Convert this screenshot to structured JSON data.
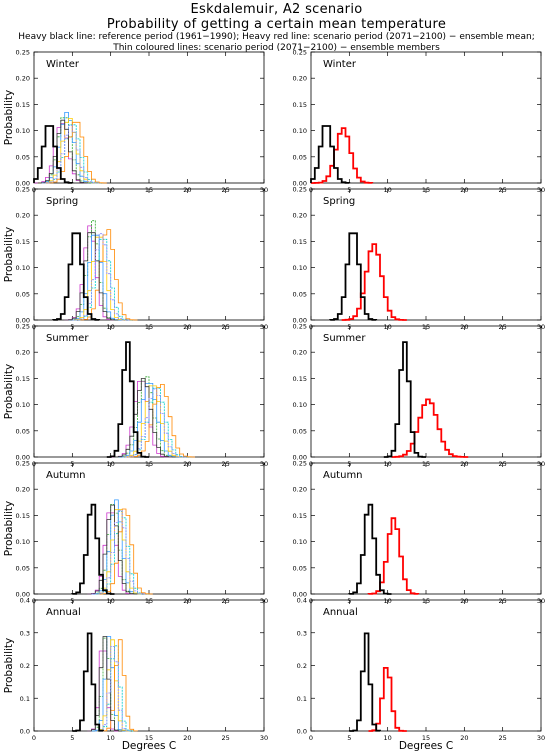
{
  "header": {
    "title": "Eskdalemuir, A2 scenario",
    "subtitle": "Probability of getting a certain mean temperature",
    "note1": "Heavy black line: reference period (1961−1990); Heavy red line: scenario period (2071−2100) − ensemble mean;",
    "note2": "Thin coloured lines: scenario period (2071−2100) − ensemble members"
  },
  "axes": {
    "xlabel": "Degrees C",
    "ylabel": "Probability",
    "xlim": [
      0,
      30
    ],
    "xticks": [
      "0",
      "5",
      "10",
      "15",
      "20",
      "25",
      "30"
    ]
  },
  "colors": {
    "reference": "#000000",
    "ensemble_mean": "#ff0000",
    "members": [
      "#cc33cc",
      "#33aa33",
      "#3399ff",
      "#ffcc00",
      "#00cccc",
      "#ff8800",
      "#333333",
      "#8888ff"
    ]
  },
  "chart_data": [
    {
      "type": "line",
      "season": "Winter",
      "ylim": [
        0,
        0.25
      ],
      "yticks": [
        "0.00",
        "0.05",
        "0.10",
        "0.15",
        "0.20",
        "0.25"
      ],
      "reference": {
        "mean": 2.0,
        "sd": 0.75,
        "peak": 0.115
      },
      "scenario_mean": {
        "mean": 4.2,
        "sd": 0.95,
        "peak": 0.105
      },
      "members": [
        {
          "mean": 3.6,
          "sd": 0.85,
          "peak": 0.115
        },
        {
          "mean": 4.0,
          "sd": 0.85,
          "peak": 0.13
        },
        {
          "mean": 4.3,
          "sd": 0.9,
          "peak": 0.135
        },
        {
          "mean": 4.6,
          "sd": 0.9,
          "peak": 0.125
        },
        {
          "mean": 5.0,
          "sd": 0.95,
          "peak": 0.115
        },
        {
          "mean": 5.5,
          "sd": 0.95,
          "peak": 0.12
        },
        {
          "mean": 3.8,
          "sd": 0.8,
          "peak": 0.12
        },
        {
          "mean": 4.8,
          "sd": 0.9,
          "peak": 0.11
        }
      ]
    },
    {
      "type": "line",
      "season": "Spring",
      "ylim": [
        0,
        0.25
      ],
      "yticks": [
        "0.00",
        "0.05",
        "0.10",
        "0.15",
        "0.20",
        "0.25"
      ],
      "reference": {
        "mean": 5.5,
        "sd": 0.75,
        "peak": 0.175
      },
      "scenario_mean": {
        "mean": 8.2,
        "sd": 1.0,
        "peak": 0.145
      },
      "members": [
        {
          "mean": 7.3,
          "sd": 0.75,
          "peak": 0.18
        },
        {
          "mean": 7.7,
          "sd": 0.75,
          "peak": 0.19
        },
        {
          "mean": 8.0,
          "sd": 0.8,
          "peak": 0.17
        },
        {
          "mean": 8.5,
          "sd": 0.85,
          "peak": 0.165
        },
        {
          "mean": 9.0,
          "sd": 0.9,
          "peak": 0.16
        },
        {
          "mean": 9.6,
          "sd": 0.9,
          "peak": 0.175
        },
        {
          "mean": 7.5,
          "sd": 0.8,
          "peak": 0.175
        },
        {
          "mean": 8.8,
          "sd": 0.85,
          "peak": 0.165
        }
      ]
    },
    {
      "type": "line",
      "season": "Summer",
      "ylim": [
        0,
        0.25
      ],
      "yticks": [
        "0.00",
        "0.05",
        "0.10",
        "0.15",
        "0.20",
        "0.25"
      ],
      "reference": {
        "mean": 12.2,
        "sd": 0.6,
        "peak": 0.22
      },
      "scenario_mean": {
        "mean": 15.3,
        "sd": 1.2,
        "peak": 0.11
      },
      "members": [
        {
          "mean": 14.0,
          "sd": 0.9,
          "peak": 0.15
        },
        {
          "mean": 14.6,
          "sd": 0.95,
          "peak": 0.155
        },
        {
          "mean": 15.0,
          "sd": 1.0,
          "peak": 0.145
        },
        {
          "mean": 15.5,
          "sd": 1.0,
          "peak": 0.14
        },
        {
          "mean": 16.0,
          "sd": 1.05,
          "peak": 0.135
        },
        {
          "mean": 16.6,
          "sd": 1.05,
          "peak": 0.14
        },
        {
          "mean": 14.3,
          "sd": 0.95,
          "peak": 0.15
        },
        {
          "mean": 15.8,
          "sd": 1.0,
          "peak": 0.13
        }
      ]
    },
    {
      "type": "line",
      "season": "Autumn",
      "ylim": [
        0,
        0.25
      ],
      "yticks": [
        "0.00",
        "0.05",
        "0.10",
        "0.15",
        "0.20",
        "0.25"
      ],
      "reference": {
        "mean": 7.6,
        "sd": 0.65,
        "peak": 0.175
      },
      "scenario_mean": {
        "mean": 10.8,
        "sd": 0.8,
        "peak": 0.145
      },
      "members": [
        {
          "mean": 10.0,
          "sd": 0.7,
          "peak": 0.165
        },
        {
          "mean": 10.4,
          "sd": 0.7,
          "peak": 0.175
        },
        {
          "mean": 10.7,
          "sd": 0.75,
          "peak": 0.18
        },
        {
          "mean": 11.0,
          "sd": 0.75,
          "peak": 0.17
        },
        {
          "mean": 11.4,
          "sd": 0.8,
          "peak": 0.16
        },
        {
          "mean": 11.9,
          "sd": 0.8,
          "peak": 0.165
        },
        {
          "mean": 10.2,
          "sd": 0.75,
          "peak": 0.17
        },
        {
          "mean": 11.2,
          "sd": 0.8,
          "peak": 0.16
        }
      ]
    },
    {
      "type": "line",
      "season": "Annual",
      "ylim": [
        0,
        0.4
      ],
      "yticks": [
        "0.0",
        "0.1",
        "0.2",
        "0.3",
        "0.4"
      ],
      "reference": {
        "mean": 7.2,
        "sd": 0.45,
        "peak": 0.3
      },
      "scenario_mean": {
        "mean": 9.9,
        "sd": 0.55,
        "peak": 0.2
      },
      "members": [
        {
          "mean": 9.0,
          "sd": 0.45,
          "peak": 0.285
        },
        {
          "mean": 9.4,
          "sd": 0.45,
          "peak": 0.3
        },
        {
          "mean": 9.8,
          "sd": 0.5,
          "peak": 0.29
        },
        {
          "mean": 10.2,
          "sd": 0.5,
          "peak": 0.28
        },
        {
          "mean": 10.6,
          "sd": 0.55,
          "peak": 0.27
        },
        {
          "mean": 11.2,
          "sd": 0.55,
          "peak": 0.28
        },
        {
          "mean": 9.2,
          "sd": 0.5,
          "peak": 0.29
        },
        {
          "mean": 10.4,
          "sd": 0.5,
          "peak": 0.27
        }
      ]
    }
  ]
}
